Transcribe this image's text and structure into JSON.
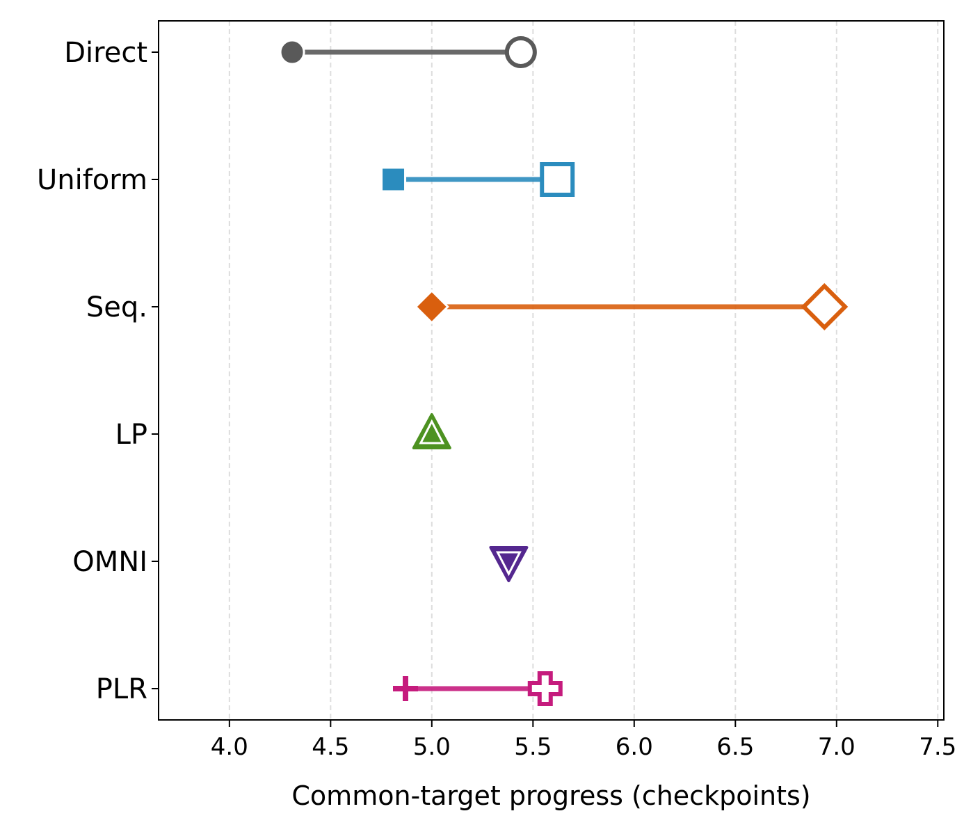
{
  "chart_data": {
    "type": "dumbbell",
    "title": "",
    "xlabel": "Common-target progress (checkpoints)",
    "ylabel": "",
    "xlim": [
      3.65,
      7.53
    ],
    "x_ticks": [
      4.0,
      4.5,
      5.0,
      5.5,
      6.0,
      6.5,
      7.0,
      7.5
    ],
    "x_tick_labels": [
      "4.0",
      "4.5",
      "5.0",
      "5.5",
      "6.0",
      "6.5",
      "7.0",
      "7.5"
    ],
    "grid": "vertical-dashed",
    "categories": [
      "Direct",
      "Uniform",
      "Seq.",
      "LP",
      "OMNI",
      "PLR"
    ],
    "series": [
      {
        "category": "Direct",
        "start": 4.31,
        "end": 5.44,
        "color": "#595959",
        "marker": "circle"
      },
      {
        "category": "Uniform",
        "start": 4.81,
        "end": 5.62,
        "color": "#2b8cbe",
        "marker": "square"
      },
      {
        "category": "Seq.",
        "start": 5.0,
        "end": 6.94,
        "color": "#d95f0e",
        "marker": "diamond"
      },
      {
        "category": "LP",
        "start": 5.0,
        "end": 5.0,
        "color": "#4d9221",
        "marker": "triangle-up"
      },
      {
        "category": "OMNI",
        "start": 5.38,
        "end": 5.38,
        "color": "#54278f",
        "marker": "triangle-down"
      },
      {
        "category": "PLR",
        "start": 4.87,
        "end": 5.56,
        "color": "#c51b7d",
        "marker": "plus"
      }
    ]
  }
}
